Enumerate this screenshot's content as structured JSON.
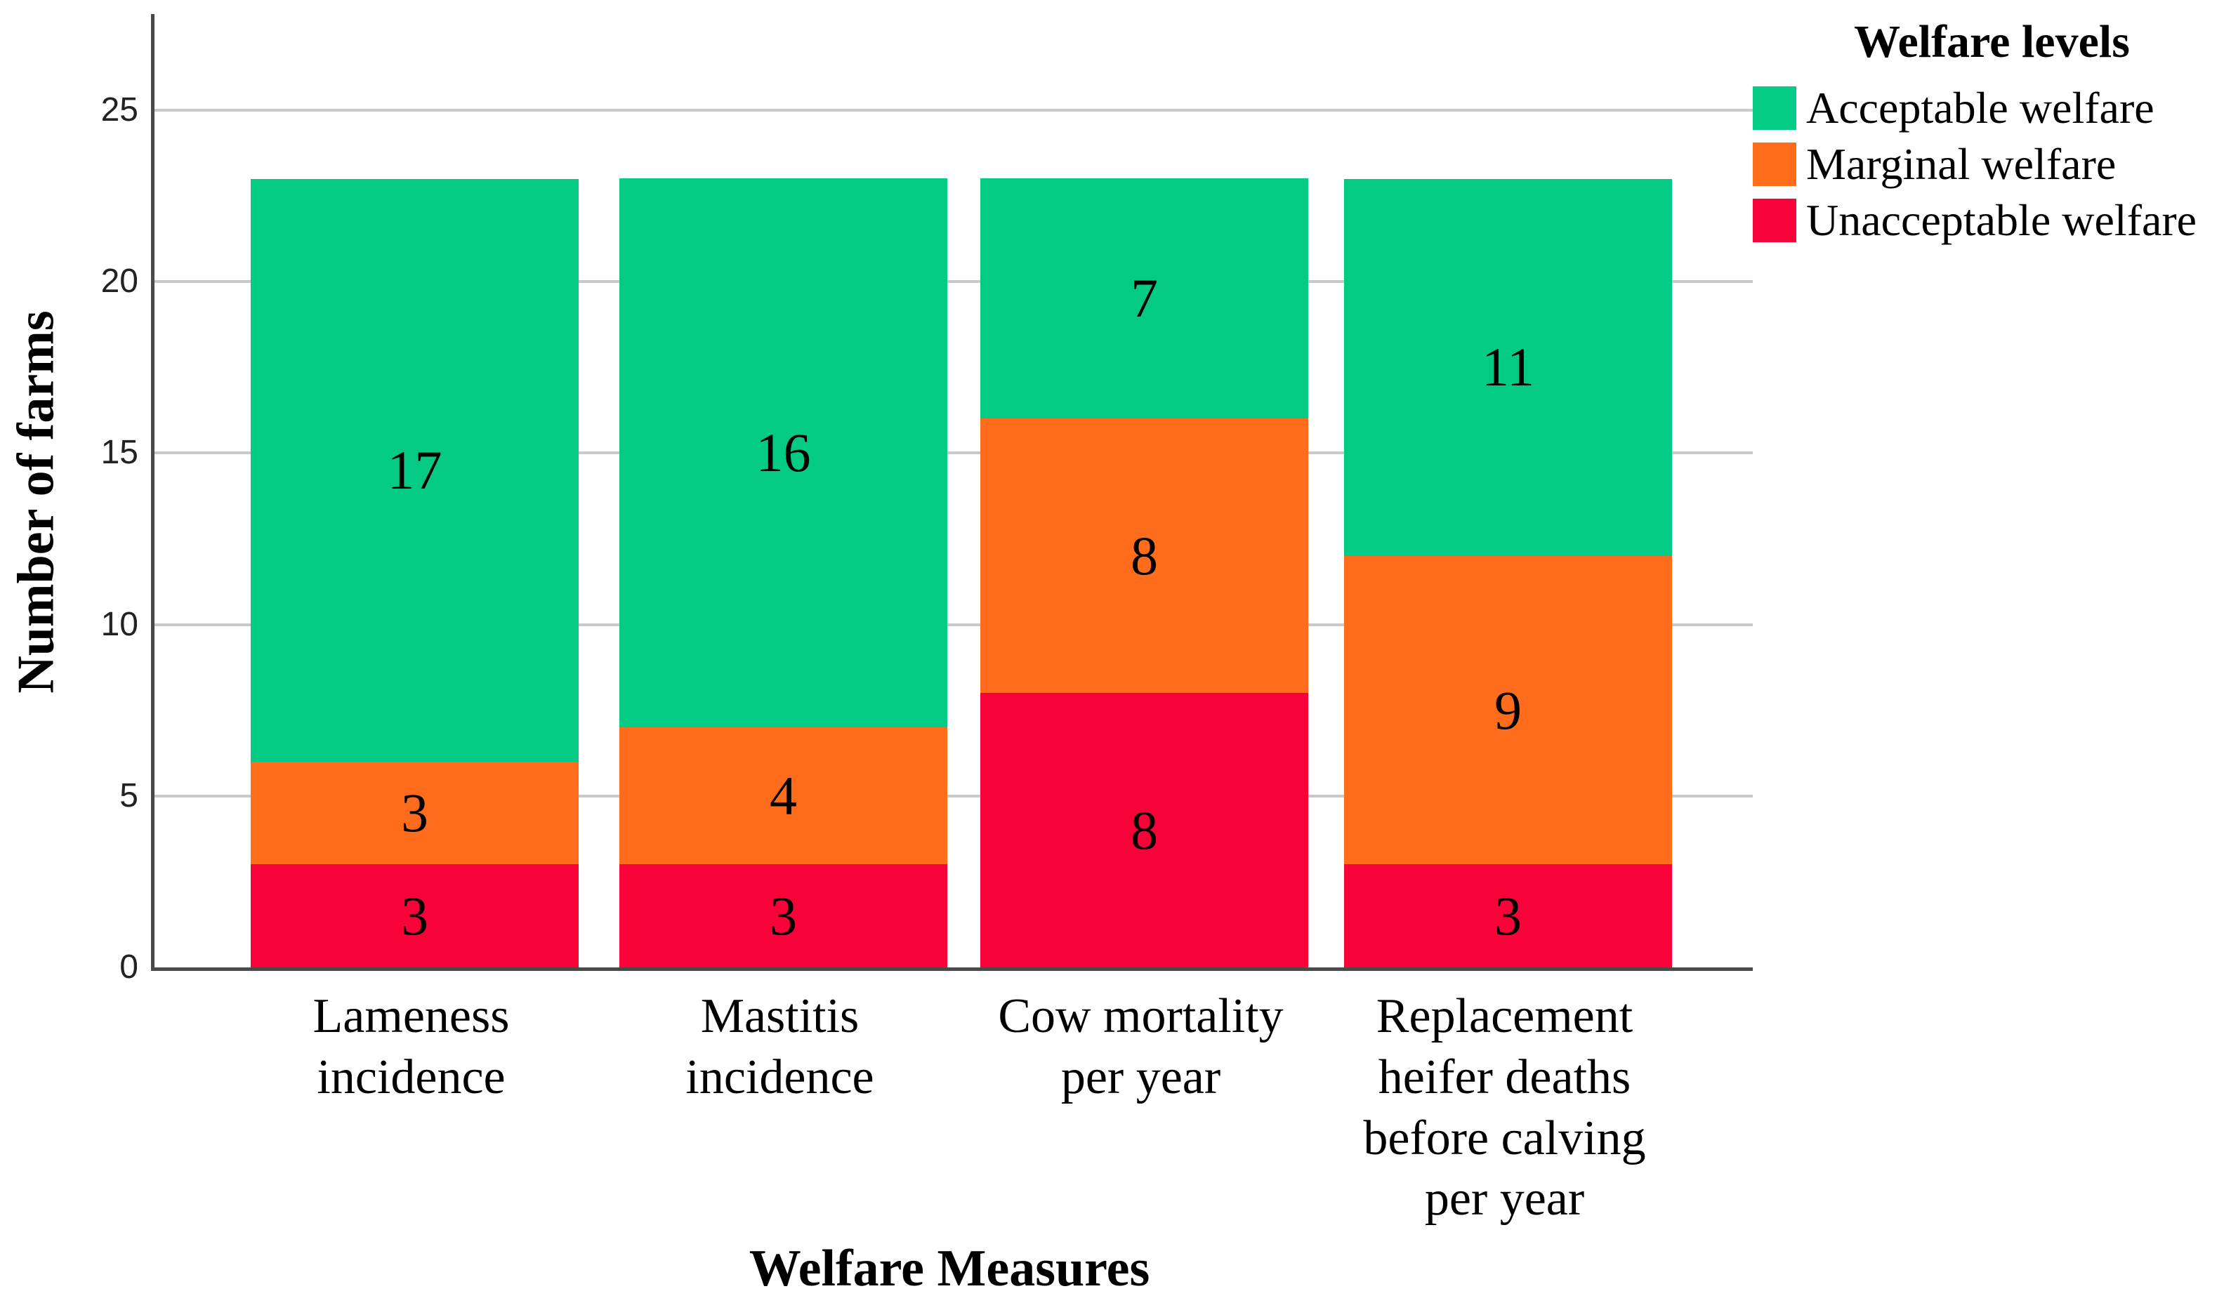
{
  "chart_data": {
    "type": "bar",
    "stacked": true,
    "xlabel": "Welfare Measures",
    "ylabel": "Number of farms",
    "categories": [
      "Lameness incidence",
      "Mastitis incidence",
      "Cow mortality per year",
      "Replacement heifer deaths before calving per year"
    ],
    "categories_wrapped": [
      [
        "Lameness",
        "incidence"
      ],
      [
        "Mastitis",
        "incidence"
      ],
      [
        "Cow mortality",
        "per year"
      ],
      [
        "Replacement",
        "heifer deaths",
        "before calving",
        "per year"
      ]
    ],
    "series": [
      {
        "name": "Unacceptable welfare",
        "color": "#F90239",
        "values": [
          3,
          3,
          8,
          3
        ]
      },
      {
        "name": "Marginal welfare",
        "color": "#FF6C1B",
        "values": [
          3,
          4,
          8,
          9
        ]
      },
      {
        "name": "Acceptable welfare",
        "color": "#03CB84",
        "values": [
          17,
          16,
          7,
          11
        ]
      }
    ],
    "totals": [
      23,
      23,
      23,
      23
    ],
    "y_ticks": [
      0,
      5,
      10,
      15,
      20,
      25
    ],
    "ylim": [
      0,
      27.8
    ],
    "grid": "horizontal",
    "legend": {
      "title": "Welfare levels",
      "position": "top-right",
      "entries": [
        "Acceptable welfare",
        "Marginal welfare",
        "Unacceptable welfare"
      ]
    },
    "colors": {
      "acceptable": "#03CB84",
      "marginal": "#FF6C1B",
      "unacceptable": "#F90239",
      "gridline": "#c9c9c9",
      "axis": "#4a4a4a"
    }
  }
}
